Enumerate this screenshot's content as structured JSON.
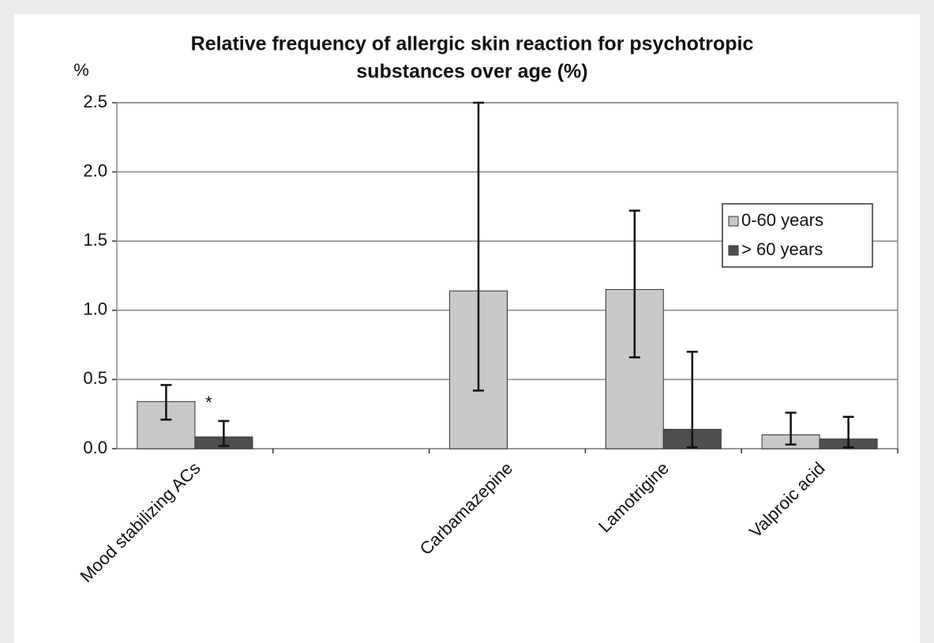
{
  "chart_data": {
    "type": "bar",
    "title": [
      "Relative frequency of allergic skin reaction for psychotropic",
      "substances over age (%)"
    ],
    "y_label": "%",
    "annotations": [
      {
        "text": "*",
        "category": 0,
        "series": 1
      }
    ],
    "categories": [
      "Mood stabilizing ACs",
      null,
      "Carbamazepine",
      "Lamotrigine",
      "Valproic acid"
    ],
    "series": [
      {
        "name": "0-60 years",
        "color": "#c8c8c8",
        "values": [
          0.34,
          null,
          1.14,
          1.15,
          0.1
        ],
        "ci_low": [
          0.21,
          null,
          0.42,
          0.66,
          0.03
        ],
        "ci_high": [
          0.46,
          null,
          2.5,
          1.72,
          0.26
        ]
      },
      {
        "name": "> 60 years",
        "color": "#4f4f4f",
        "values": [
          0.085,
          null,
          null,
          0.14,
          0.07
        ],
        "ci_low": [
          0.02,
          null,
          null,
          0.01,
          0.01
        ],
        "ci_high": [
          0.2,
          null,
          null,
          0.7,
          0.23
        ]
      }
    ],
    "ylim": [
      0,
      2.5
    ],
    "yticks": [
      {
        "value": 0,
        "label": "0.0"
      },
      {
        "value": 0.5,
        "label": "0.5"
      },
      {
        "value": 1,
        "label": "1.0"
      },
      {
        "value": 1.5,
        "label": "1.5"
      },
      {
        "value": 2,
        "label": "2.0"
      },
      {
        "value": 2.5,
        "label": "2.5"
      }
    ],
    "grid": true,
    "legend": "upper right"
  }
}
